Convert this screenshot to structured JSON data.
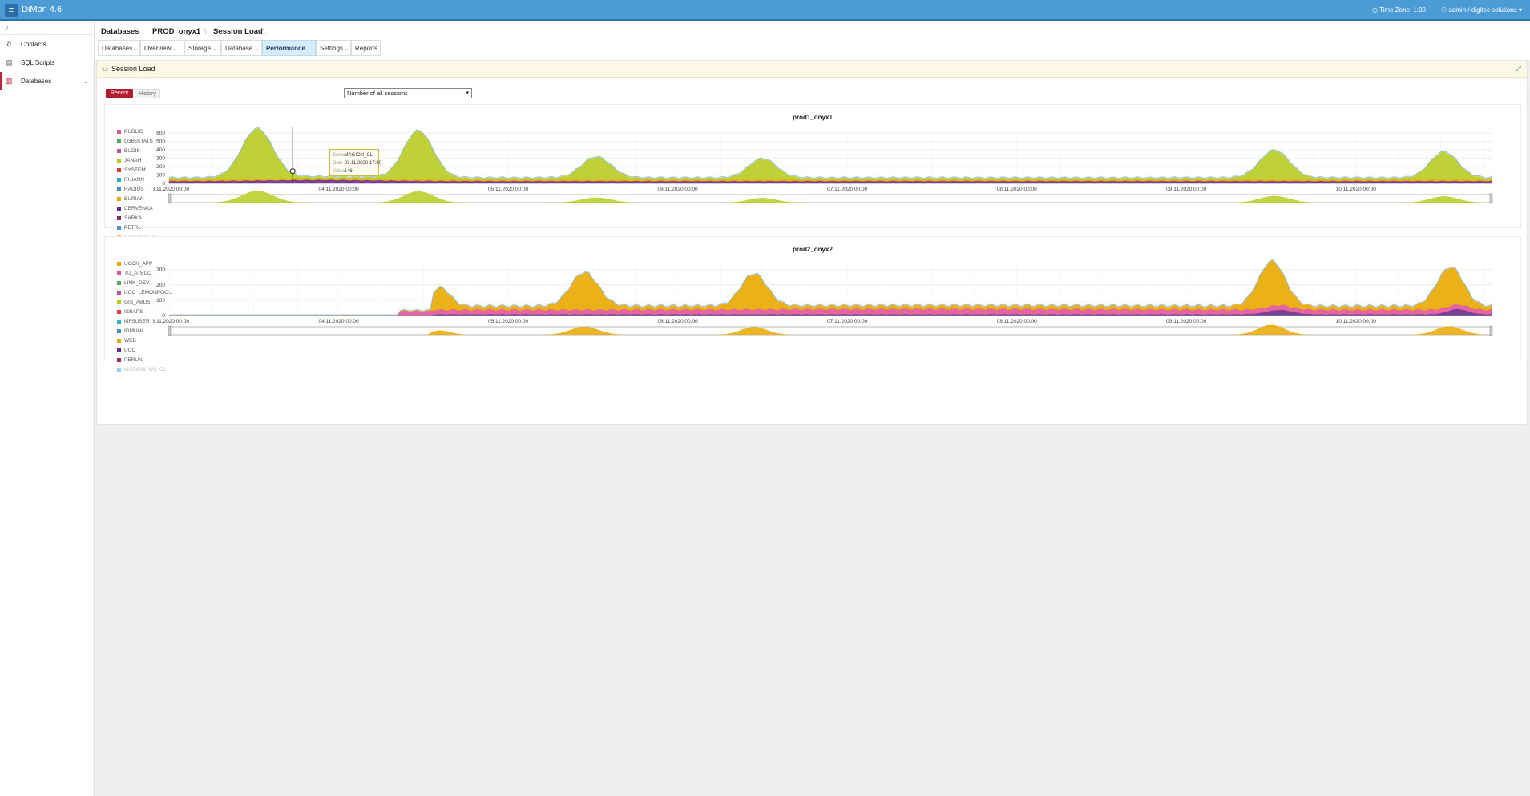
{
  "app": {
    "title": "DiMon 4.6",
    "timezone": "Time Zone: 1:00",
    "user": "admin / digitec solutions"
  },
  "sidebar": {
    "items": [
      {
        "label": "Contacts"
      },
      {
        "label": "SQL Scripts"
      },
      {
        "label": "Databases"
      }
    ]
  },
  "breadcrumb": [
    "Databases",
    "PROD_onyx1",
    "Session Load"
  ],
  "tabs": [
    {
      "label": "Databases"
    },
    {
      "label": "Overview"
    },
    {
      "label": "Storage"
    },
    {
      "label": "Database"
    },
    {
      "label": "Performance"
    },
    {
      "label": "Settings"
    },
    {
      "label": "Reports"
    }
  ],
  "panel": {
    "title": "Session Load",
    "recent_label": "Recent",
    "history_label": "History",
    "select_value": "Number of all sessions"
  },
  "tooltip": {
    "series_key": "Series",
    "series": "MAGION_CL",
    "date_key": "Date",
    "date": "03.11.2020 17:30",
    "value_key": "Value",
    "value": "146"
  },
  "colors": {
    "accent": "#4b9bd6",
    "active": "#b21c2e",
    "lime": "#b9cc22",
    "orange": "#e9a800",
    "pink": "#e0549a",
    "purple": "#6a2a8c"
  },
  "chart_data": [
    {
      "type": "area",
      "title": "prod1_onyx1",
      "x_labels": [
        "03.11.2020 00:00",
        "04.11.2020 00:00",
        "05.11.2020 00:00",
        "06.11.2020 00:00",
        "07.11.2020 00:00",
        "08.11.2020 00:00",
        "09.11.2020 00:00",
        "10.11.2020 00:00"
      ],
      "y_ticks": [
        0,
        100,
        200,
        300,
        400,
        500,
        600
      ],
      "ylim": [
        0,
        620
      ],
      "legend": [
        "PUBLIC",
        "O365STATS",
        "BUDIK",
        "JANAH",
        "SYSTEM",
        "RUIANN",
        "RADIUS",
        "BURIAN",
        "CERVENKA",
        "SARKA",
        "PETRL",
        "BURIANOVA"
      ],
      "legend_colors": [
        "#e0549a",
        "#4caf50",
        "#c0509a",
        "#b9cc22",
        "#e53935",
        "#26b6b6",
        "#3f8fd0",
        "#e9a800",
        "#6a2a8c",
        "#8e2a6a",
        "#4a90d9",
        "#f5c26b"
      ],
      "series": [
        {
          "name": "JANAH",
          "color": "#b9cc22",
          "baseline": 15,
          "peaks": [
            [
              0.52,
              580,
              0.19
            ],
            [
              1.47,
              560,
              0.18
            ],
            [
              2.52,
              250,
              0.18
            ],
            [
              3.5,
              230,
              0.17
            ],
            [
              6.52,
              330,
              0.18
            ],
            [
              7.52,
              310,
              0.17
            ]
          ]
        },
        {
          "name": "BURIAN",
          "color": "#e9a800",
          "baseline": 18,
          "peaks": []
        },
        {
          "name": "CERVENKA",
          "color": "#6a2a8c",
          "baseline": 14,
          "peaks": [
            [
              0.9,
              14,
              0.7
            ]
          ]
        },
        {
          "name": "PUBLIC",
          "color": "#e0549a",
          "baseline": 8,
          "peaks": []
        },
        {
          "name": "RADIUS",
          "color": "#3f8fd0",
          "baseline": 6,
          "peaks": []
        }
      ],
      "navigator": true
    },
    {
      "type": "area",
      "title": "prod2_onyx2",
      "x_labels": [
        "03.11.2020 00:00",
        "04.11.2020 00:00",
        "05.11.2020 00:00",
        "06.11.2020 00:00",
        "07.11.2020 00:00",
        "08.11.2020 00:00",
        "09.11.2020 00:00",
        "10.11.2020 00:00"
      ],
      "y_ticks": [
        0,
        100,
        200,
        300
      ],
      "ylim": [
        0,
        340
      ],
      "legend": [
        "UCCN_APP",
        "TU_ATECO",
        "LINK_DEV",
        "UCC_LEMONPOOL",
        "GIS_ABUS",
        "ISBAPS",
        "MFSUSER",
        "IDMUNI",
        "WEB",
        "UCC",
        "PERUN",
        "MAGION_WS_CL"
      ],
      "legend_colors": [
        "#e9a800",
        "#e0549a",
        "#4caf50",
        "#c0509a",
        "#b9cc22",
        "#e53935",
        "#26b6b6",
        "#3f8fd0",
        "#e9a800",
        "#6a2a8c",
        "#8e2a6a",
        "#9ecbf0"
      ],
      "series": [
        {
          "name": "UCCN_APP",
          "color": "#e9a800",
          "baseline": 20,
          "start": 1.55,
          "peaks": [
            [
              1.6,
              120,
              0.12
            ],
            [
              2.45,
              220,
              0.17
            ],
            [
              3.45,
              210,
              0.16
            ],
            [
              6.5,
              270,
              0.16
            ],
            [
              7.55,
              230,
              0.16
            ]
          ]
        },
        {
          "name": "TU_ATECO",
          "color": "#e0549a",
          "baseline": 30,
          "start": 1.35,
          "peaks": [
            [
              4.5,
              5,
              2
            ]
          ]
        },
        {
          "name": "UCC",
          "color": "#6a2a8c",
          "baseline": 4,
          "start": 1.55,
          "peaks": [
            [
              6.55,
              30,
              0.15
            ],
            [
              7.6,
              35,
              0.12
            ]
          ]
        },
        {
          "name": "IDMUNI",
          "color": "#3f8fd0",
          "baseline": 4,
          "start": 1.55,
          "peaks": []
        }
      ],
      "navigator": true
    }
  ]
}
